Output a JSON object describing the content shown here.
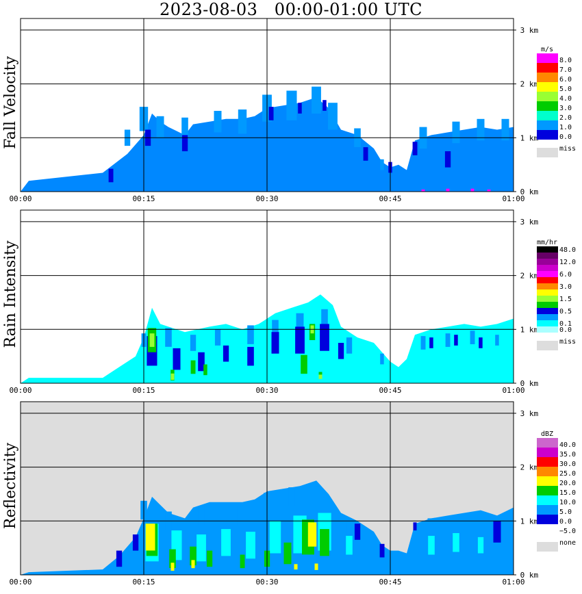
{
  "title": "2023-08-03   00:00-01:00 UTC",
  "x_ticks": [
    "00:00",
    "00:15",
    "00:30",
    "00:45",
    "01:00"
  ],
  "y_ticks": [
    "0 km",
    "1 km",
    "2 km",
    "3 km"
  ],
  "chart_data": [
    {
      "type": "heatmap",
      "ylabel": "Fall Velocity",
      "xrange_minutes": [
        0,
        60
      ],
      "yrange_km": [
        0,
        3.05
      ],
      "background": "#ffffff",
      "legend": {
        "unit": "m/s",
        "labels": [
          "8.0",
          "7.0",
          "6.0",
          "5.0",
          "4.0",
          "3.0",
          "2.0",
          "1.0",
          "0.0"
        ],
        "colors": [
          "#ff00ff",
          "#ff0000",
          "#ff8800",
          "#ffff00",
          "#99ff33",
          "#00cc00",
          "#00ffcc",
          "#0099ff",
          "#0000dd"
        ],
        "miss_label": "miss",
        "miss_color": "#dddddd"
      },
      "echo_top_km": [
        [
          0,
          0
        ],
        [
          1,
          0.2
        ],
        [
          10,
          0.35
        ],
        [
          13,
          0.7
        ],
        [
          15,
          1.05
        ],
        [
          16,
          1.45
        ],
        [
          17,
          1.3
        ],
        [
          18,
          1.2
        ],
        [
          20,
          1.05
        ],
        [
          21,
          1.25
        ],
        [
          23,
          1.3
        ],
        [
          25,
          1.35
        ],
        [
          27,
          1.35
        ],
        [
          28.5,
          1.4
        ],
        [
          30,
          1.55
        ],
        [
          32,
          1.6
        ],
        [
          34,
          1.65
        ],
        [
          36,
          1.75
        ],
        [
          37.5,
          1.55
        ],
        [
          39,
          1.15
        ],
        [
          41,
          1.05
        ],
        [
          43,
          0.8
        ],
        [
          44,
          0.55
        ],
        [
          45,
          0.45
        ],
        [
          46,
          0.5
        ],
        [
          47,
          0.4
        ],
        [
          48,
          0.95
        ],
        [
          50,
          1.05
        ],
        [
          52,
          1.1
        ],
        [
          54,
          1.15
        ],
        [
          56,
          1.2
        ],
        [
          58,
          1.15
        ],
        [
          60,
          1.2
        ]
      ],
      "levels": [
        {
          "color": "#0099ff",
          "cells": [
            [
              13,
              1.0,
              0.3
            ],
            [
              15,
              1.35,
              0.45
            ],
            [
              17,
              1.2,
              0.4
            ],
            [
              20,
              1.2,
              0.35
            ],
            [
              24,
              1.3,
              0.4
            ],
            [
              27,
              1.3,
              0.45
            ],
            [
              30,
              1.55,
              0.5
            ],
            [
              33,
              1.6,
              0.55
            ],
            [
              36,
              1.7,
              0.5
            ],
            [
              38,
              1.4,
              0.5
            ],
            [
              41,
              1.0,
              0.35
            ],
            [
              44,
              0.5,
              0.2
            ],
            [
              49,
              1.0,
              0.4
            ],
            [
              53,
              1.1,
              0.4
            ],
            [
              56,
              1.15,
              0.4
            ],
            [
              59,
              1.15,
              0.4
            ]
          ]
        },
        {
          "color": "#0000dd",
          "cells": [
            [
              11,
              0.3,
              0.25
            ],
            [
              15.5,
              1.0,
              0.3
            ],
            [
              20,
              0.9,
              0.3
            ],
            [
              30.5,
              1.45,
              0.25
            ],
            [
              34,
              1.55,
              0.2
            ],
            [
              37,
              1.6,
              0.2
            ],
            [
              42,
              0.7,
              0.25
            ],
            [
              45,
              0.45,
              0.2
            ],
            [
              48,
              0.8,
              0.25
            ],
            [
              52,
              0.6,
              0.3
            ]
          ]
        },
        {
          "color": "#ff00ff",
          "cells": [
            [
              49,
              0.02,
              0.04
            ],
            [
              52,
              0.03,
              0.05
            ],
            [
              55,
              0.03,
              0.05
            ],
            [
              57,
              0.02,
              0.04
            ]
          ]
        }
      ]
    },
    {
      "type": "heatmap",
      "ylabel": "Rain Intensity",
      "xrange_minutes": [
        0,
        60
      ],
      "yrange_km": [
        0,
        3.05
      ],
      "background": "#ffffff",
      "legend": {
        "unit": "mm/hr",
        "labels": [
          "48.0",
          "",
          "12.0",
          "",
          "6.0",
          "",
          "3.0",
          "",
          "1.5",
          "",
          "0.5",
          "",
          "0.1",
          "0.0"
        ],
        "colors": [
          "#000000",
          "#660066",
          "#990099",
          "#cc00cc",
          "#ff00ff",
          "#ff0000",
          "#ff8800",
          "#ffff00",
          "#99ff33",
          "#00cc00",
          "#0000dd",
          "#0099ff",
          "#00ffff",
          "#aaffff"
        ],
        "miss_label": "miss",
        "miss_color": "#dddddd"
      },
      "echo_top_km": [
        [
          0,
          0
        ],
        [
          1,
          0.1
        ],
        [
          10,
          0.1
        ],
        [
          12,
          0.3
        ],
        [
          14,
          0.5
        ],
        [
          15,
          0.85
        ],
        [
          16,
          1.4
        ],
        [
          17,
          1.1
        ],
        [
          18,
          1.05
        ],
        [
          20,
          0.95
        ],
        [
          23,
          1.05
        ],
        [
          25,
          1.1
        ],
        [
          27,
          1.0
        ],
        [
          29,
          1.1
        ],
        [
          31,
          1.3
        ],
        [
          33,
          1.4
        ],
        [
          35,
          1.5
        ],
        [
          36.5,
          1.65
        ],
        [
          38,
          1.45
        ],
        [
          39,
          1.05
        ],
        [
          41,
          0.85
        ],
        [
          43,
          0.75
        ],
        [
          45,
          0.4
        ],
        [
          46,
          0.3
        ],
        [
          47,
          0.45
        ],
        [
          48,
          0.9
        ],
        [
          50,
          1.0
        ],
        [
          52,
          1.05
        ],
        [
          54,
          1.1
        ],
        [
          56,
          1.05
        ],
        [
          58,
          1.1
        ],
        [
          60,
          1.2
        ]
      ],
      "levels": [
        {
          "color": "#0099ff",
          "cells": [
            [
              15,
              0.8,
              0.25
            ],
            [
              18,
              0.85,
              0.35
            ],
            [
              21,
              0.75,
              0.3
            ],
            [
              24,
              0.85,
              0.3
            ],
            [
              28,
              0.9,
              0.35
            ],
            [
              31,
              1.0,
              0.35
            ],
            [
              34,
              1.1,
              0.4
            ],
            [
              37,
              1.2,
              0.35
            ],
            [
              40,
              0.7,
              0.3
            ],
            [
              44,
              0.45,
              0.2
            ],
            [
              49,
              0.75,
              0.25
            ],
            [
              52,
              0.8,
              0.25
            ],
            [
              55,
              0.85,
              0.25
            ],
            [
              58,
              0.8,
              0.2
            ]
          ]
        },
        {
          "color": "#0000dd",
          "cells": [
            [
              16,
              0.6,
              0.55
            ],
            [
              19,
              0.45,
              0.4
            ],
            [
              22,
              0.4,
              0.35
            ],
            [
              25,
              0.55,
              0.3
            ],
            [
              28,
              0.5,
              0.35
            ],
            [
              31,
              0.75,
              0.4
            ],
            [
              34,
              0.8,
              0.5
            ],
            [
              37,
              0.85,
              0.5
            ],
            [
              39,
              0.6,
              0.3
            ],
            [
              50,
              0.75,
              0.2
            ],
            [
              53,
              0.8,
              0.2
            ],
            [
              56,
              0.75,
              0.2
            ]
          ]
        },
        {
          "color": "#00cc00",
          "cells": [
            [
              16,
              0.8,
              0.45
            ],
            [
              18.5,
              0.15,
              0.2
            ],
            [
              21,
              0.3,
              0.25
            ],
            [
              22.5,
              0.25,
              0.2
            ],
            [
              34.5,
              0.35,
              0.35
            ],
            [
              35.5,
              0.95,
              0.3
            ],
            [
              36.5,
              0.15,
              0.12
            ]
          ]
        },
        {
          "color": "#99ff33",
          "cells": [
            [
              16,
              0.8,
              0.25
            ],
            [
              18.5,
              0.12,
              0.12
            ],
            [
              35.5,
              1.0,
              0.15
            ],
            [
              36.5,
              0.12,
              0.08
            ]
          ]
        }
      ]
    },
    {
      "type": "heatmap",
      "ylabel": "Reflectivity",
      "xrange_minutes": [
        0,
        60
      ],
      "yrange_km": [
        0,
        3.05
      ],
      "background": "#dddddd",
      "legend": {
        "unit": "dBZ",
        "labels": [
          "40.0",
          "35.0",
          "30.0",
          "25.0",
          "20.0",
          "15.0",
          "10.0",
          "5.0",
          "0.0",
          "−5.0"
        ],
        "colors": [
          "#cc66cc",
          "#cc00cc",
          "#ff0000",
          "#ff8800",
          "#ffff00",
          "#00cc00",
          "#00ffff",
          "#0099ff",
          "#0000dd",
          "#ffffff"
        ],
        "miss_label": "none",
        "miss_color": "#dddddd"
      },
      "echo_top_km": [
        [
          0,
          0
        ],
        [
          1,
          0.05
        ],
        [
          10,
          0.1
        ],
        [
          12,
          0.35
        ],
        [
          14,
          0.7
        ],
        [
          15,
          1.05
        ],
        [
          16,
          1.45
        ],
        [
          17,
          1.3
        ],
        [
          18,
          1.15
        ],
        [
          20,
          1.05
        ],
        [
          21,
          1.25
        ],
        [
          23,
          1.35
        ],
        [
          25,
          1.35
        ],
        [
          27,
          1.35
        ],
        [
          28.5,
          1.4
        ],
        [
          30,
          1.55
        ],
        [
          32,
          1.6
        ],
        [
          34,
          1.65
        ],
        [
          36,
          1.75
        ],
        [
          37.5,
          1.5
        ],
        [
          39,
          1.15
        ],
        [
          41,
          1.0
        ],
        [
          43,
          0.8
        ],
        [
          44,
          0.55
        ],
        [
          45,
          0.45
        ],
        [
          46,
          0.45
        ],
        [
          47,
          0.4
        ],
        [
          48,
          0.95
        ],
        [
          50,
          1.05
        ],
        [
          52,
          1.1
        ],
        [
          54,
          1.15
        ],
        [
          56,
          1.2
        ],
        [
          58,
          1.1
        ],
        [
          60,
          1.25
        ]
      ],
      "levels": [
        {
          "color": "#0000dd",
          "cells": [
            [
              12,
              0.3,
              0.3
            ],
            [
              14,
              0.6,
              0.3
            ],
            [
              41,
              0.8,
              0.3
            ],
            [
              44,
              0.45,
              0.25
            ],
            [
              48,
              0.9,
              0.15
            ],
            [
              58,
              0.8,
              0.4
            ]
          ]
        },
        {
          "color": "#0099ff",
          "cells": [
            [
              15,
              1.2,
              0.35
            ],
            [
              18,
              1.0,
              0.35
            ],
            [
              22,
              1.1,
              0.35
            ],
            [
              26,
              1.1,
              0.35
            ],
            [
              30,
              1.35,
              0.35
            ],
            [
              33,
              1.45,
              0.35
            ],
            [
              36,
              1.5,
              0.3
            ],
            [
              40,
              0.85,
              0.35
            ],
            [
              50,
              0.85,
              0.4
            ],
            [
              53,
              0.9,
              0.35
            ],
            [
              56,
              0.85,
              0.4
            ]
          ]
        },
        {
          "color": "#00ffff",
          "cells": [
            [
              16,
              0.6,
              0.7
            ],
            [
              19,
              0.55,
              0.55
            ],
            [
              22,
              0.5,
              0.5
            ],
            [
              25,
              0.6,
              0.5
            ],
            [
              28,
              0.55,
              0.5
            ],
            [
              31,
              0.7,
              0.6
            ],
            [
              34,
              0.75,
              0.7
            ],
            [
              37,
              0.8,
              0.7
            ],
            [
              40,
              0.55,
              0.35
            ],
            [
              50,
              0.55,
              0.35
            ],
            [
              53,
              0.6,
              0.35
            ],
            [
              56,
              0.55,
              0.3
            ]
          ]
        },
        {
          "color": "#00cc00",
          "cells": [
            [
              16,
              0.65,
              0.6
            ],
            [
              18.5,
              0.3,
              0.35
            ],
            [
              21,
              0.35,
              0.35
            ],
            [
              23,
              0.3,
              0.3
            ],
            [
              27,
              0.25,
              0.25
            ],
            [
              30,
              0.3,
              0.3
            ],
            [
              32.5,
              0.4,
              0.4
            ],
            [
              35,
              0.7,
              0.65
            ],
            [
              37,
              0.6,
              0.5
            ]
          ]
        },
        {
          "color": "#ffff00",
          "cells": [
            [
              15.8,
              0.7,
              0.5
            ],
            [
              18.5,
              0.15,
              0.15
            ],
            [
              21,
              0.2,
              0.15
            ],
            [
              33.5,
              0.15,
              0.1
            ],
            [
              35.5,
              0.75,
              0.45
            ],
            [
              36,
              0.15,
              0.12
            ]
          ]
        }
      ]
    }
  ]
}
